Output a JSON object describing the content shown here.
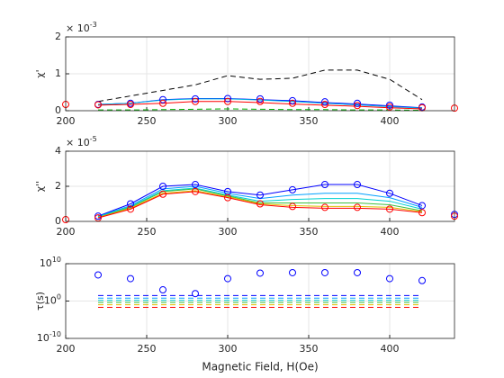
{
  "chart_data": [
    {
      "type": "line",
      "ylabel": "χ'",
      "exponent": {
        "base": "× 10",
        "power": "-3"
      },
      "x": [
        200,
        220,
        240,
        260,
        280,
        300,
        320,
        340,
        360,
        380,
        400,
        420,
        440
      ],
      "xlim": [
        200,
        440
      ],
      "xticks": [
        200,
        250,
        300,
        350,
        400
      ],
      "ylim": [
        0,
        0.002
      ],
      "yticks": [
        0,
        {
          "value": 0.001,
          "label": "1"
        },
        {
          "value": 0.002,
          "label": "2"
        }
      ],
      "grid": true,
      "series": [
        {
          "color": "#000000",
          "dashed": true,
          "values": [
            null,
            0.00025,
            0.0004,
            0.00055,
            0.0007,
            0.00095,
            0.00085,
            0.00088,
            0.0011,
            0.0011,
            0.00085,
            0.0003,
            null
          ]
        },
        {
          "color": "#0000ff",
          "values": [
            null,
            0.00017,
            0.0002,
            0.0003,
            0.00033,
            0.00033,
            0.0003,
            0.00027,
            0.00022,
            0.00018,
            0.00013,
            8e-05,
            null
          ]
        },
        {
          "color": "#00b0e0",
          "values": [
            null,
            0.00017,
            0.0002,
            0.00029,
            0.00032,
            0.00032,
            0.00029,
            0.00025,
            0.0002,
            0.00016,
            0.00011,
            7e-05,
            null
          ]
        },
        {
          "color": "#00b000",
          "dashed": true,
          "values": [
            null,
            2e-05,
            2e-05,
            3e-05,
            4e-05,
            5e-05,
            4e-05,
            3e-05,
            3e-05,
            2e-05,
            2e-05,
            1e-05,
            null
          ]
        },
        {
          "color": "#ff0000",
          "values": [
            null,
            0.00015,
            0.00017,
            0.0002,
            0.00025,
            0.00025,
            0.00022,
            0.00018,
            0.00015,
            0.00012,
            8e-05,
            5e-05,
            null
          ]
        },
        {
          "color": "#0000ff",
          "marker": "o",
          "values": [
            null,
            0.00017,
            0.0002,
            0.0003,
            0.00032,
            0.00033,
            0.00032,
            0.00027,
            0.00024,
            0.0002,
            0.00015,
            0.0001,
            null
          ]
        },
        {
          "color": "#ff0000",
          "marker": "o",
          "values": [
            0.00017,
            0.00016,
            0.00017,
            0.0002,
            0.00025,
            0.00025,
            0.00025,
            0.0002,
            0.00017,
            0.00014,
            0.0001,
            8e-05,
            7e-05
          ]
        }
      ]
    },
    {
      "type": "line",
      "ylabel": "χ''",
      "exponent": {
        "base": "× 10",
        "power": "-5"
      },
      "x": [
        200,
        220,
        240,
        260,
        280,
        300,
        320,
        340,
        360,
        380,
        400,
        420,
        440
      ],
      "xlim": [
        200,
        440
      ],
      "xticks": [
        200,
        250,
        300,
        350,
        400
      ],
      "ylim": [
        0,
        4e-05
      ],
      "yticks": [
        0,
        {
          "value": 2e-05,
          "label": "2"
        },
        {
          "value": 4e-05,
          "label": "4"
        }
      ],
      "grid": true,
      "series": [
        {
          "color": "#0000ff",
          "values": [
            null,
            3e-06,
            1e-05,
            2e-05,
            2.1e-05,
            1.7e-05,
            1.5e-05,
            1.8e-05,
            2.1e-05,
            2.1e-05,
            1.6e-05,
            9e-06,
            null
          ]
        },
        {
          "color": "#00a0ff",
          "values": [
            null,
            2.8e-06,
            9e-06,
            1.85e-05,
            2e-05,
            1.6e-05,
            1.3e-05,
            1.5e-05,
            1.6e-05,
            1.6e-05,
            1.35e-05,
            8e-06,
            null
          ]
        },
        {
          "color": "#00d0d0",
          "values": [
            null,
            2.5e-06,
            8.5e-06,
            1.75e-05,
            1.9e-05,
            1.5e-05,
            1.15e-05,
            1.25e-05,
            1.3e-05,
            1.3e-05,
            1.15e-05,
            7e-06,
            null
          ]
        },
        {
          "color": "#40c040",
          "values": [
            null,
            2.3e-06,
            8e-06,
            1.7e-05,
            1.85e-05,
            1.45e-05,
            1.05e-05,
            1.05e-05,
            1.05e-05,
            1.05e-05,
            9.5e-06,
            6e-06,
            null
          ]
        },
        {
          "color": "#e0c000",
          "values": [
            null,
            2.2e-06,
            7.5e-06,
            1.6e-05,
            1.75e-05,
            1.4e-05,
            1e-05,
            9e-06,
            8.5e-06,
            8.5e-06,
            8e-06,
            5.5e-06,
            null
          ]
        },
        {
          "color": "#ff0000",
          "values": [
            null,
            2e-06,
            7e-06,
            1.55e-05,
            1.7e-05,
            1.35e-05,
            9.5e-06,
            8e-06,
            7.5e-06,
            7.5e-06,
            7e-06,
            5e-06,
            null
          ]
        },
        {
          "color": "#0000ff",
          "marker": "o",
          "values": [
            null,
            3e-06,
            1e-05,
            2e-05,
            2.1e-05,
            1.7e-05,
            1.5e-05,
            1.8e-05,
            2.1e-05,
            2.1e-05,
            1.6e-05,
            9e-06,
            4e-06
          ]
        },
        {
          "color": "#ff0000",
          "marker": "o",
          "values": [
            1e-06,
            2e-06,
            7e-06,
            1.55e-05,
            1.7e-05,
            1.35e-05,
            1e-05,
            8.5e-06,
            8e-06,
            8e-06,
            7e-06,
            5e-06,
            3e-06
          ]
        }
      ]
    },
    {
      "type": "line",
      "ylabel": "τ(s)",
      "xlabel": "Magnetic Field, H(Oe)",
      "yscale": "log",
      "x": [
        200,
        220,
        240,
        260,
        280,
        300,
        320,
        340,
        360,
        380,
        400,
        420,
        440
      ],
      "xlim": [
        200,
        440
      ],
      "xticks": [
        200,
        250,
        300,
        350,
        400
      ],
      "ylim": [
        1e-10,
        10000000000.0
      ],
      "yticks": [
        {
          "value": 1e-10,
          "label": "10",
          "power": "-10"
        },
        {
          "value": 1,
          "label": "10",
          "power": "0"
        },
        {
          "value": 10000000000.0,
          "label": "10",
          "power": "10"
        }
      ],
      "grid": true,
      "series": [
        {
          "color": "#0000ff",
          "dashed": true,
          "values": [
            null,
            30,
            30,
            30,
            30,
            30,
            30,
            30,
            30,
            30,
            30,
            30,
            null
          ]
        },
        {
          "color": "#00a0ff",
          "dashed": true,
          "values": [
            null,
            6,
            6,
            6,
            6,
            6,
            6,
            6,
            6,
            6,
            6,
            6,
            null
          ]
        },
        {
          "color": "#00d0d0",
          "dashed": true,
          "values": [
            null,
            1.5,
            1.5,
            1.5,
            1.5,
            1.5,
            1.5,
            1.5,
            1.5,
            1.5,
            1.5,
            1.5,
            null
          ]
        },
        {
          "color": "#40c040",
          "dashed": true,
          "values": [
            null,
            0.4,
            0.4,
            0.4,
            0.4,
            0.4,
            0.4,
            0.4,
            0.4,
            0.4,
            0.4,
            0.4,
            null
          ]
        },
        {
          "color": "#e0c000",
          "dashed": true,
          "values": [
            null,
            0.1,
            0.1,
            0.1,
            0.1,
            0.1,
            0.1,
            0.1,
            0.1,
            0.1,
            0.1,
            0.1,
            null
          ]
        },
        {
          "color": "#ff0000",
          "dashed": true,
          "values": [
            null,
            0.02,
            0.02,
            0.02,
            0.02,
            0.02,
            0.02,
            0.02,
            0.02,
            0.02,
            0.02,
            0.02,
            null
          ]
        },
        {
          "color": "#0000ff",
          "marker": "o",
          "values": [
            null,
            10000000.0,
            1000000.0,
            1000,
            100,
            1000000.0,
            30000000.0,
            40000000.0,
            40000000.0,
            40000000.0,
            1000000.0,
            300000,
            null
          ]
        }
      ]
    }
  ]
}
